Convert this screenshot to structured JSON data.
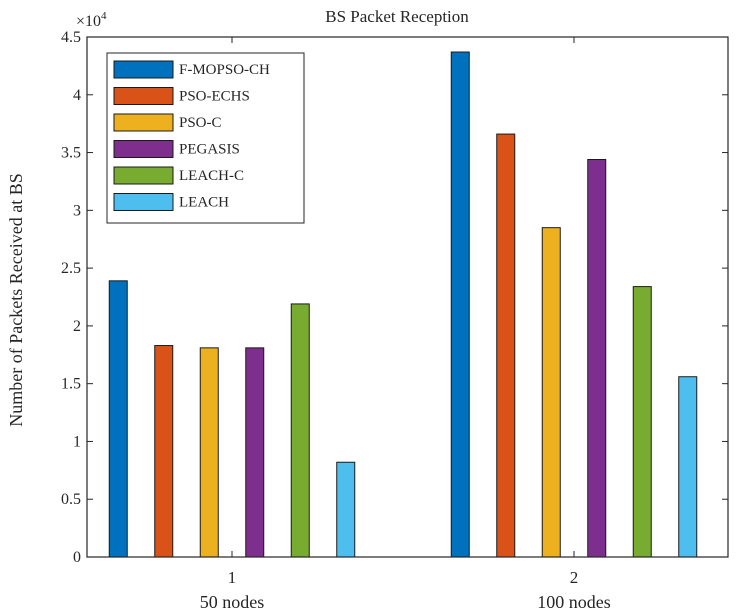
{
  "chart_data": {
    "type": "bar",
    "title": "BS Packet Reception",
    "ylabel": "Number of Packets Received at BS",
    "xlabel": "",
    "exponent_base": "×10",
    "exponent_power": "4",
    "ylim": [
      0,
      4.5
    ],
    "yticks": [
      "0",
      "0.5",
      "1",
      "1.5",
      "2",
      "2.5",
      "3",
      "3.5",
      "4",
      "4.5"
    ],
    "categories": [
      "1",
      "2"
    ],
    "category_sublabels": [
      "50 nodes",
      "100 nodes"
    ],
    "legend_position": "top-left",
    "series": [
      {
        "name": "F-MOPSO-CH",
        "color": "#0072BD",
        "values": [
          2.39,
          4.37
        ]
      },
      {
        "name": "PSO-ECHS",
        "color": "#D95319",
        "values": [
          1.83,
          3.66
        ]
      },
      {
        "name": "PSO-C",
        "color": "#EDB120",
        "values": [
          1.81,
          2.85
        ]
      },
      {
        "name": "PEGASIS",
        "color": "#7E2F8E",
        "values": [
          1.81,
          3.44
        ]
      },
      {
        "name": "LEACH-C",
        "color": "#77AC30",
        "values": [
          2.19,
          2.34
        ]
      },
      {
        "name": "LEACH",
        "color": "#4DBEEE",
        "values": [
          0.82,
          1.56
        ]
      }
    ]
  }
}
